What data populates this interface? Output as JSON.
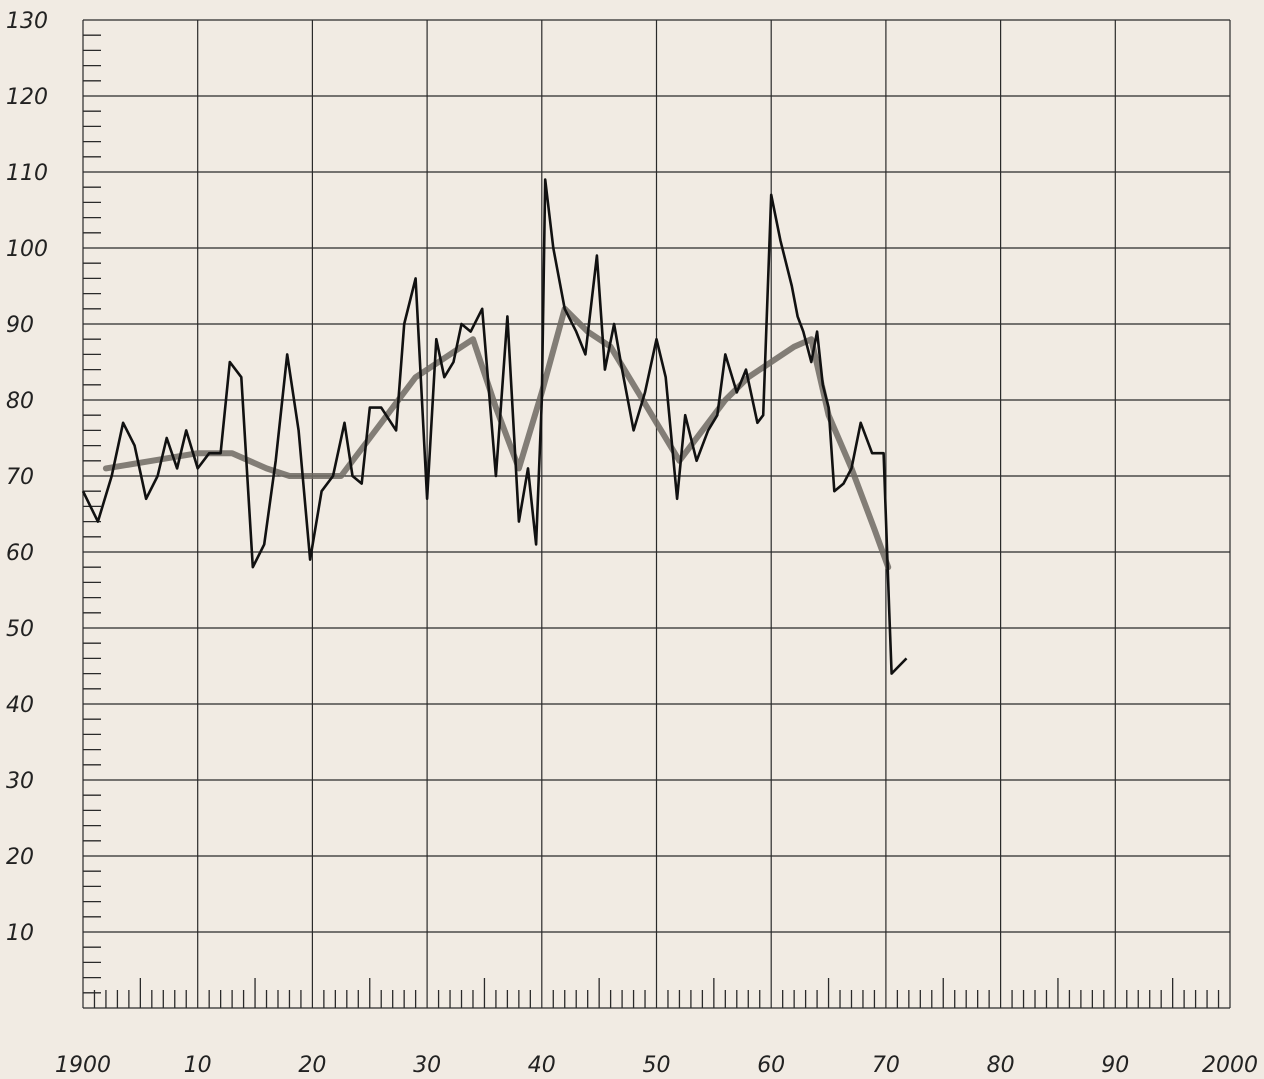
{
  "chart_data": {
    "type": "line",
    "title": "",
    "xlabel": "",
    "ylabel": "",
    "xlim": [
      1900,
      2000
    ],
    "ylim": [
      0,
      130
    ],
    "grid": true,
    "x_tick_labels": [
      {
        "value": 1900,
        "label": "1900"
      },
      {
        "value": 1910,
        "label": "10"
      },
      {
        "value": 1920,
        "label": "20"
      },
      {
        "value": 1930,
        "label": "30"
      },
      {
        "value": 1940,
        "label": "40"
      },
      {
        "value": 1950,
        "label": "50"
      },
      {
        "value": 1960,
        "label": "60"
      },
      {
        "value": 1970,
        "label": "70"
      },
      {
        "value": 1980,
        "label": "80"
      },
      {
        "value": 1990,
        "label": "90"
      },
      {
        "value": 2000,
        "label": "2000"
      }
    ],
    "y_tick_labels": [
      {
        "value": 10,
        "label": "10"
      },
      {
        "value": 20,
        "label": "20"
      },
      {
        "value": 30,
        "label": "30"
      },
      {
        "value": 40,
        "label": "40"
      },
      {
        "value": 50,
        "label": "50"
      },
      {
        "value": 60,
        "label": "60"
      },
      {
        "value": 70,
        "label": "70"
      },
      {
        "value": 80,
        "label": "80"
      },
      {
        "value": 90,
        "label": "90"
      },
      {
        "value": 100,
        "label": "100"
      },
      {
        "value": 110,
        "label": "110"
      },
      {
        "value": 120,
        "label": "120"
      },
      {
        "value": 130,
        "label": "130"
      }
    ],
    "series": [
      {
        "style": "raw",
        "color": "#111111",
        "points": [
          [
            1900.0,
            68
          ],
          [
            1901.3,
            64
          ],
          [
            1902.5,
            70
          ],
          [
            1903.5,
            77
          ],
          [
            1904.5,
            74
          ],
          [
            1905.5,
            67
          ],
          [
            1906.5,
            70
          ],
          [
            1907.3,
            75
          ],
          [
            1908.2,
            71
          ],
          [
            1909.0,
            76
          ],
          [
            1910.0,
            71
          ],
          [
            1911.0,
            73
          ],
          [
            1912.0,
            73
          ],
          [
            1912.8,
            85
          ],
          [
            1913.8,
            83
          ],
          [
            1914.8,
            58
          ],
          [
            1915.8,
            61
          ],
          [
            1916.8,
            72
          ],
          [
            1917.8,
            86
          ],
          [
            1918.8,
            76
          ],
          [
            1919.8,
            59
          ],
          [
            1920.8,
            68
          ],
          [
            1921.8,
            70
          ],
          [
            1922.8,
            77
          ],
          [
            1923.5,
            70
          ],
          [
            1924.3,
            69
          ],
          [
            1925.0,
            79
          ],
          [
            1926.0,
            79
          ],
          [
            1927.3,
            76
          ],
          [
            1928.0,
            90
          ],
          [
            1929.0,
            96
          ],
          [
            1930.0,
            67
          ],
          [
            1930.8,
            88
          ],
          [
            1931.5,
            83
          ],
          [
            1932.3,
            85
          ],
          [
            1933.0,
            90
          ],
          [
            1933.8,
            89
          ],
          [
            1934.8,
            92
          ],
          [
            1936.0,
            70
          ],
          [
            1937.0,
            91
          ],
          [
            1938.0,
            64
          ],
          [
            1938.8,
            71
          ],
          [
            1939.5,
            61
          ],
          [
            1940.0,
            80
          ],
          [
            1940.3,
            109
          ],
          [
            1941.0,
            100
          ],
          [
            1942.0,
            92
          ],
          [
            1943.0,
            89
          ],
          [
            1943.8,
            86
          ],
          [
            1944.8,
            99
          ],
          [
            1945.5,
            84
          ],
          [
            1946.3,
            90
          ],
          [
            1947.0,
            84
          ],
          [
            1948.0,
            76
          ],
          [
            1949.0,
            81
          ],
          [
            1950.0,
            88
          ],
          [
            1950.8,
            83
          ],
          [
            1951.8,
            67
          ],
          [
            1952.5,
            78
          ],
          [
            1953.5,
            72
          ],
          [
            1954.5,
            76
          ],
          [
            1955.3,
            78
          ],
          [
            1956.0,
            86
          ],
          [
            1957.0,
            81
          ],
          [
            1957.8,
            84
          ],
          [
            1958.8,
            77
          ],
          [
            1959.3,
            78
          ],
          [
            1960.0,
            107
          ],
          [
            1960.8,
            101
          ],
          [
            1961.8,
            95
          ],
          [
            1962.3,
            91
          ],
          [
            1962.8,
            89
          ],
          [
            1963.5,
            85
          ],
          [
            1964.0,
            89
          ],
          [
            1964.5,
            82
          ],
          [
            1965.0,
            79
          ],
          [
            1965.5,
            68
          ],
          [
            1966.3,
            69
          ],
          [
            1967.0,
            71
          ],
          [
            1967.8,
            77
          ],
          [
            1968.8,
            73
          ],
          [
            1969.8,
            73
          ],
          [
            1970.3,
            52
          ],
          [
            1970.5,
            44
          ],
          [
            1971.8,
            46
          ]
        ]
      },
      {
        "style": "smoothed",
        "color": "#6f6a63",
        "points": [
          [
            1902.0,
            71
          ],
          [
            1906.0,
            72
          ],
          [
            1910.0,
            73
          ],
          [
            1913.0,
            73
          ],
          [
            1916.0,
            71
          ],
          [
            1918.0,
            70
          ],
          [
            1920.0,
            70
          ],
          [
            1922.5,
            70
          ],
          [
            1925.0,
            75
          ],
          [
            1927.0,
            79
          ],
          [
            1929.0,
            83
          ],
          [
            1931.0,
            85
          ],
          [
            1933.0,
            87
          ],
          [
            1934.0,
            88
          ],
          [
            1936.0,
            79
          ],
          [
            1938.0,
            71
          ],
          [
            1940.0,
            81
          ],
          [
            1942.0,
            92
          ],
          [
            1944.0,
            89
          ],
          [
            1946.0,
            87
          ],
          [
            1948.0,
            82
          ],
          [
            1950.0,
            77
          ],
          [
            1952.0,
            72
          ],
          [
            1954.0,
            76
          ],
          [
            1956.0,
            80
          ],
          [
            1958.0,
            83
          ],
          [
            1960.0,
            85
          ],
          [
            1962.0,
            87
          ],
          [
            1963.5,
            88
          ],
          [
            1965.0,
            78
          ],
          [
            1967.0,
            71
          ],
          [
            1969.0,
            63
          ],
          [
            1970.2,
            58
          ]
        ]
      }
    ]
  }
}
